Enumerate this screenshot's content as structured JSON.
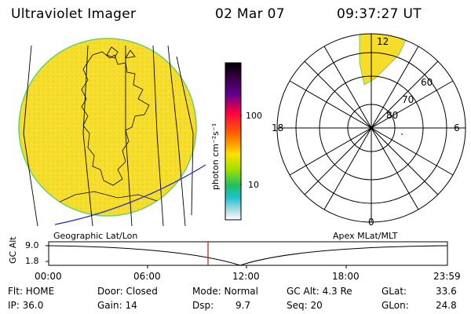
{
  "header": {
    "title": "Ultraviolet Imager",
    "date": "02 Mar 07",
    "time": "09:37:27 UT"
  },
  "colorbar": {
    "unit": "photon cm⁻²s⁻¹",
    "ticks": [
      "100",
      "10"
    ],
    "colors": [
      "#000000",
      "#3b0047",
      "#600090",
      "#ff0040",
      "#ff6000",
      "#ffa000",
      "#ffe000",
      "#a0e000",
      "#20c060",
      "#20c0d0",
      "#a0d8e0",
      "#ffffff"
    ]
  },
  "geo_map": {
    "label": "Geographic Lat/Lon",
    "fill_color": "#f7dd2a"
  },
  "polar_plot": {
    "label": "Apex MLat/MLT",
    "mlt_labels": {
      "top": "12",
      "left": "18",
      "right": "6",
      "bottom": "0"
    },
    "lat_labels": [
      "60",
      "70",
      "80"
    ]
  },
  "altitude_plot": {
    "ylabel": "GC Alt",
    "yticks": [
      "9.0",
      "1.8"
    ],
    "xticks": [
      "00:00",
      "06:00",
      "12:00",
      "18:00",
      "23:59"
    ],
    "marker_time": "09:37:27"
  },
  "info": {
    "flt": "Flt: HOME",
    "ip": "IP: 36.0",
    "door": "Door: Closed",
    "gain": "Gain: 14",
    "mode": "Mode: Normal",
    "dsp_label": "Dsp:",
    "dsp_value": "9.7",
    "gc_alt": "GC Alt: 4.3 Re",
    "seq": "Seq: 20",
    "glat_label": "GLat:",
    "glat_value": "33.6",
    "glon_label": "GLon:",
    "glon_value": "24.8"
  }
}
